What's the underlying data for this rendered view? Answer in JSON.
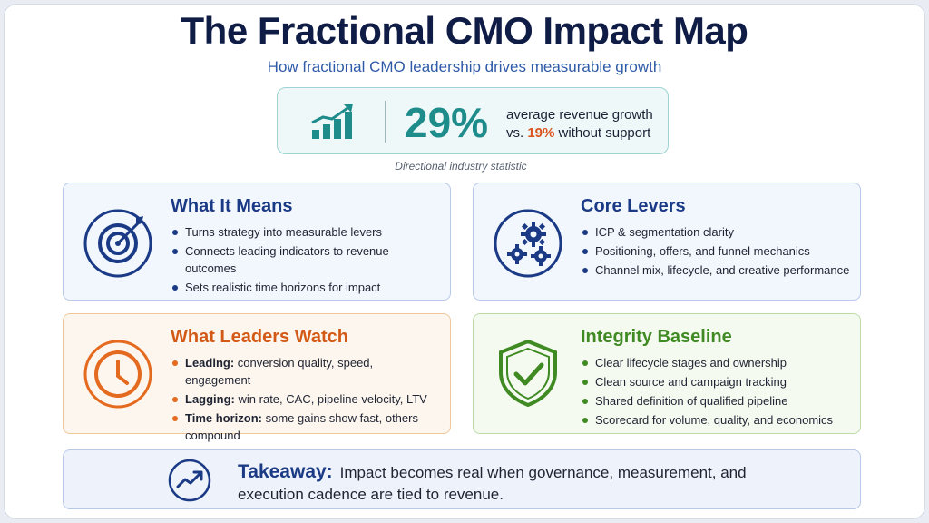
{
  "header": {
    "title": "The Fractional CMO Impact Map",
    "subtitle": "How fractional CMO leadership drives measurable growth"
  },
  "stat": {
    "icon": "growth-bar-chart-icon",
    "value": "29%",
    "line1": "average revenue growth",
    "line2_prefix": "vs.",
    "line2_highlight": "19%",
    "line2_suffix": "without support",
    "note": "Directional industry statistic"
  },
  "cards": [
    {
      "icon": "target-icon",
      "title": "What It Means",
      "items": [
        {
          "text": "Turns strategy into measurable levers"
        },
        {
          "text": "Connects leading indicators to revenue outcomes"
        },
        {
          "text": "Sets realistic time horizons for impact"
        }
      ]
    },
    {
      "icon": "gears-icon",
      "title": "Core Levers",
      "items": [
        {
          "text": "ICP & segmentation clarity"
        },
        {
          "text": "Positioning, offers, and funnel mechanics"
        },
        {
          "text": "Channel mix, lifecycle, and creative performance"
        }
      ]
    },
    {
      "icon": "clock-icon",
      "title": "What Leaders Watch",
      "items": [
        {
          "label": "Leading:",
          "text": "conversion quality, speed, engagement"
        },
        {
          "label": "Lagging:",
          "text": "win rate, CAC, pipeline velocity, LTV"
        },
        {
          "label": "Time horizon:",
          "text": "some gains show fast, others compound"
        }
      ]
    },
    {
      "icon": "shield-check-icon",
      "title": "Integrity Baseline",
      "items": [
        {
          "text": "Clear lifecycle stages and ownership"
        },
        {
          "text": "Clean source and campaign tracking"
        },
        {
          "text": "Shared definition of qualified pipeline"
        },
        {
          "text": "Scorecard for volume, quality, and economics"
        }
      ]
    }
  ],
  "takeaway": {
    "icon": "trend-up-icon",
    "label": "Takeaway:",
    "text": "Impact becomes real when governance, measurement, and execution cadence are tied to revenue."
  },
  "colors": {
    "navy": "#0f1c45",
    "blue": "#1a3a86",
    "teal": "#1f8c8c",
    "orange": "#d35a16",
    "green": "#3f8a22"
  }
}
